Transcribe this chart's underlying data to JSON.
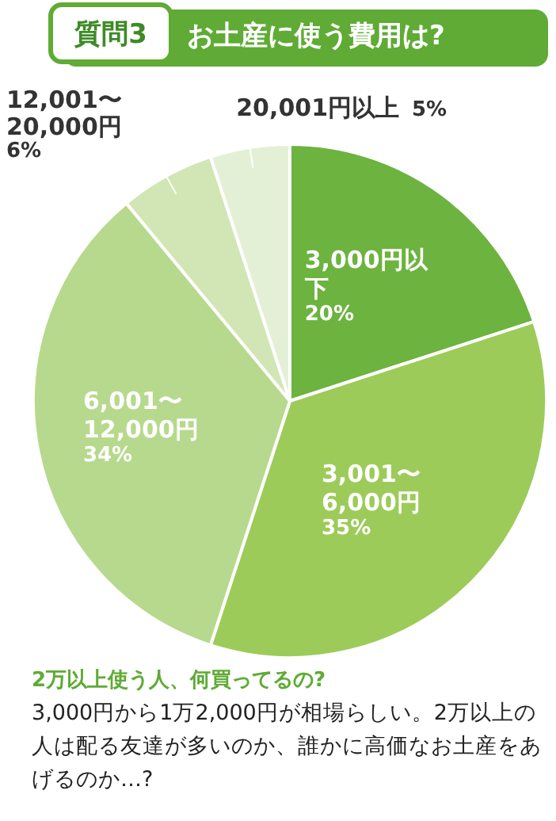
{
  "chart_data": {
    "type": "pie",
    "title": "質問3",
    "subtitle": "お土産に使う費用は?",
    "categories": [
      "3,000円以下",
      "3,001〜6,000円",
      "6,001〜12,000円",
      "12,001〜20,000円",
      "20,001円以上"
    ],
    "values": [
      20,
      35,
      34,
      6,
      5
    ],
    "colors": [
      "#6db33f",
      "#9dcb5a",
      "#b7d98d",
      "#d1e6b4",
      "#e4f0d5"
    ],
    "value_labels": [
      "20%",
      "35%",
      "34%",
      "6%",
      "5%"
    ],
    "annotations": [
      "2万以上使う人、何買ってるの?",
      "3,000円から1万2,000円が相場らしい。2万以上の人は配る友達が多いのか、誰かに高価なお土産をあげるのか…?"
    ]
  }
}
